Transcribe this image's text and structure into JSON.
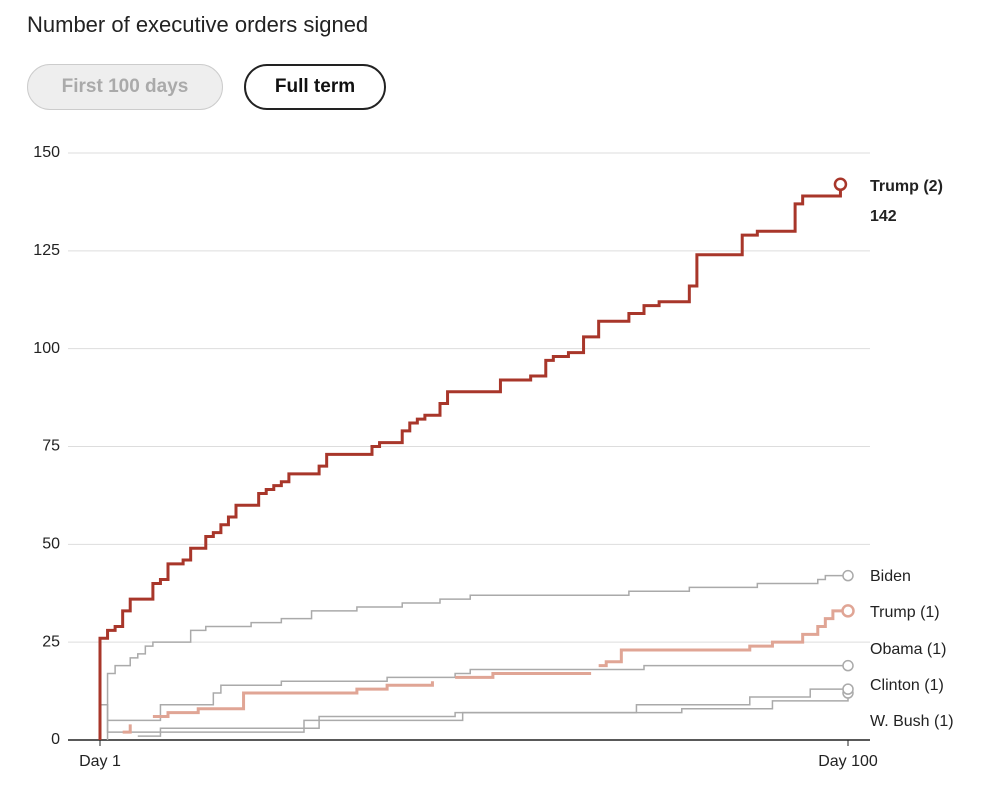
{
  "chart_data": {
    "type": "step",
    "title": "Number of executive orders signed",
    "toggle": [
      "First 100 days",
      "Full term"
    ],
    "xlim": [
      1,
      100
    ],
    "xticks": [
      {
        "value": 1,
        "label": "Day 1"
      },
      {
        "value": 100,
        "label": "Day 100"
      }
    ],
    "ylim": [
      0,
      150
    ],
    "yticks": [
      0,
      25,
      50,
      75,
      100,
      125,
      150
    ],
    "grid": true,
    "series": [
      {
        "name": "Trump (2)",
        "color": "#a8362a",
        "x": [
          1,
          1,
          2,
          3,
          4,
          5,
          8,
          9,
          10,
          12,
          13,
          15,
          16,
          17,
          18,
          19,
          22,
          23,
          24,
          25,
          26,
          30,
          31,
          37,
          38,
          41,
          42,
          43,
          44,
          46,
          47,
          54,
          58,
          60,
          61,
          63,
          65,
          67,
          71,
          73,
          75,
          79,
          80,
          86,
          88,
          93,
          94,
          99
        ],
        "values": [
          0,
          26,
          28,
          29,
          33,
          36,
          40,
          41,
          45,
          46,
          49,
          52,
          53,
          55,
          57,
          60,
          63,
          64,
          65,
          66,
          68,
          70,
          73,
          75,
          76,
          79,
          81,
          82,
          83,
          86,
          89,
          92,
          93,
          97,
          98,
          99,
          103,
          107,
          109,
          111,
          112,
          116,
          124,
          129,
          130,
          137,
          139,
          142
        ]
      },
      {
        "name": "Biden",
        "color": "#aaaaaa",
        "x": [
          2,
          2,
          3,
          5,
          6,
          7,
          8,
          13,
          15,
          21,
          25,
          29,
          35,
          41,
          46,
          50,
          71,
          79,
          88,
          96,
          97,
          100
        ],
        "values": [
          0,
          17,
          19,
          21,
          22,
          24,
          25,
          28,
          29,
          30,
          31,
          33,
          34,
          35,
          36,
          37,
          38,
          39,
          40,
          41,
          42,
          42
        ]
      },
      {
        "name": "Trump (1)",
        "color": "#e0a595",
        "x": [
          4,
          5,
          null,
          8,
          10,
          14,
          20,
          35,
          39,
          45,
          null,
          48,
          53,
          66,
          null,
          67,
          68,
          70,
          87,
          90,
          94,
          96,
          97,
          98,
          100
        ],
        "values": [
          2,
          4,
          null,
          6,
          7,
          8,
          12,
          13,
          14,
          15,
          null,
          16,
          17,
          17,
          null,
          19,
          20,
          23,
          24,
          25,
          27,
          29,
          31,
          33,
          33
        ]
      },
      {
        "name": "Obama (1)",
        "color": "#aaaaaa",
        "x": [
          2,
          9,
          16,
          17,
          25,
          39,
          48,
          50,
          73,
          100
        ],
        "values": [
          5,
          9,
          12,
          14,
          15,
          16,
          17,
          18,
          19,
          19
        ]
      },
      {
        "name": "Clinton (1)",
        "color": "#aaaaaa",
        "x": [
          1,
          1,
          2,
          9,
          30,
          48,
          72,
          87,
          95,
          100
        ],
        "values": [
          0,
          9,
          2,
          3,
          6,
          7,
          9,
          11,
          13,
          13
        ]
      },
      {
        "name": "W. Bush (1)",
        "color": "#aaaaaa",
        "x": [
          6,
          9,
          28,
          49,
          78,
          90,
          100
        ],
        "values": [
          1,
          2,
          5,
          7,
          8,
          10,
          12
        ]
      }
    ]
  }
}
